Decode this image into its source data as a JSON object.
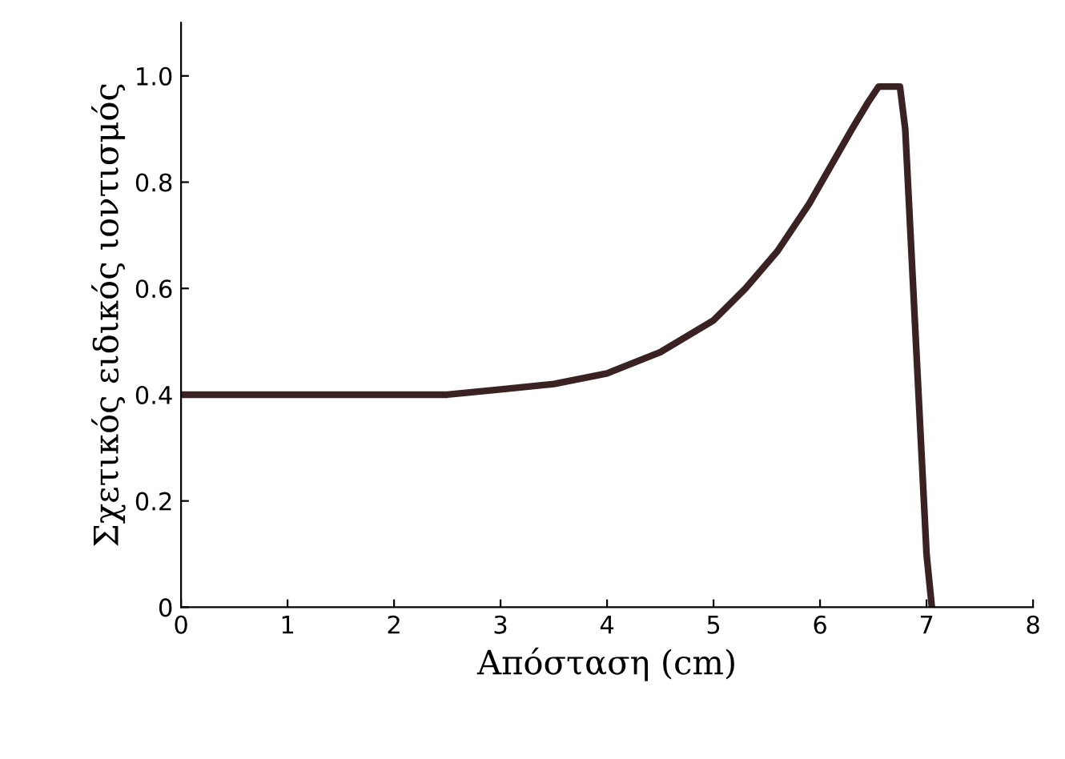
{
  "chart_data": {
    "type": "line",
    "xlabel": "Απόσταση (cm)",
    "ylabel": "Σχετικός ειδικός ιοντισμός",
    "xlim": [
      0,
      8
    ],
    "ylim": [
      0,
      1.1
    ],
    "xticks": [
      0,
      1,
      2,
      3,
      4,
      5,
      6,
      7,
      8
    ],
    "yticks": [
      0,
      0.2,
      0.4,
      0.6,
      {
        "value": 1.0,
        "label": "1.0"
      },
      0.8
    ],
    "grid": false,
    "legend": false,
    "marker": "none",
    "line_style": "solid",
    "series": [
      {
        "color": "#3a2222",
        "x": [
          0,
          1,
          2,
          2.5,
          3,
          3.5,
          4,
          4.5,
          5,
          5.3,
          5.6,
          5.9,
          6.1,
          6.3,
          6.45,
          6.55,
          6.75,
          6.8,
          6.85,
          6.9,
          6.95,
          7.0,
          7.05
        ],
        "values": [
          0.4,
          0.4,
          0.4,
          0.4,
          0.41,
          0.42,
          0.44,
          0.48,
          0.54,
          0.6,
          0.67,
          0.76,
          0.83,
          0.9,
          0.95,
          0.98,
          0.98,
          0.9,
          0.7,
          0.5,
          0.3,
          0.1,
          0
        ]
      }
    ]
  }
}
